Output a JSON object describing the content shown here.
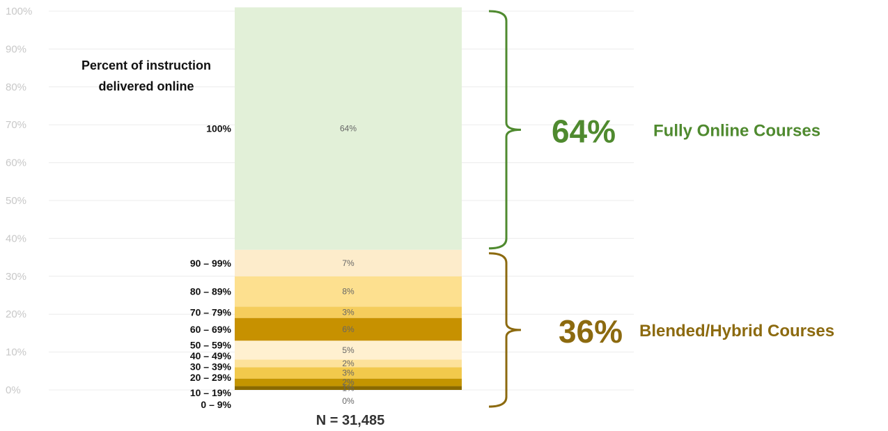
{
  "chart_data": {
    "type": "bar",
    "stacked": true,
    "ylim": [
      0,
      100
    ],
    "yticks": [
      "0%",
      "10%",
      "20%",
      "30%",
      "40%",
      "50%",
      "60%",
      "70%",
      "80%",
      "90%",
      "100%"
    ],
    "grid": true,
    "axis_caption_line1": "Percent of instruction",
    "axis_caption_line2": "delivered online",
    "n_label": "N = 31,485",
    "series": [
      {
        "name": "0 – 9%",
        "value": 0,
        "label": "0%",
        "color": "#a8b43c"
      },
      {
        "name": "10 – 19%",
        "value": 1,
        "label": "1%",
        "color": "#8a6a00"
      },
      {
        "name": "20 – 29%",
        "value": 2,
        "label": "2%",
        "color": "#c49500"
      },
      {
        "name": "30 – 39%",
        "value": 3,
        "label": "3%",
        "color": "#f2c94c"
      },
      {
        "name": "40 – 49%",
        "value": 2,
        "label": "2%",
        "color": "#fde29a"
      },
      {
        "name": "50 – 59%",
        "value": 5,
        "label": "5%",
        "color": "#fff0d0"
      },
      {
        "name": "60 – 69%",
        "value": 6,
        "label": "6%",
        "color": "#c79100"
      },
      {
        "name": "70 – 79%",
        "value": 3,
        "label": "3%",
        "color": "#f5cd5c"
      },
      {
        "name": "80 – 89%",
        "value": 8,
        "label": "8%",
        "color": "#fde08f"
      },
      {
        "name": "90 – 99%",
        "value": 7,
        "label": "7%",
        "color": "#fdeccb"
      },
      {
        "name": "100%",
        "value": 64,
        "label": "64%",
        "color": "#e2f0d8"
      }
    ],
    "groups": [
      {
        "pct": "64%",
        "label": "Fully Online Courses",
        "color": "#4f8a2f",
        "from": 37,
        "to": 100
      },
      {
        "pct": "36%",
        "label": "Blended/Hybrid Courses",
        "color": "#8c6a0f",
        "from": 0,
        "to": 37
      }
    ]
  }
}
